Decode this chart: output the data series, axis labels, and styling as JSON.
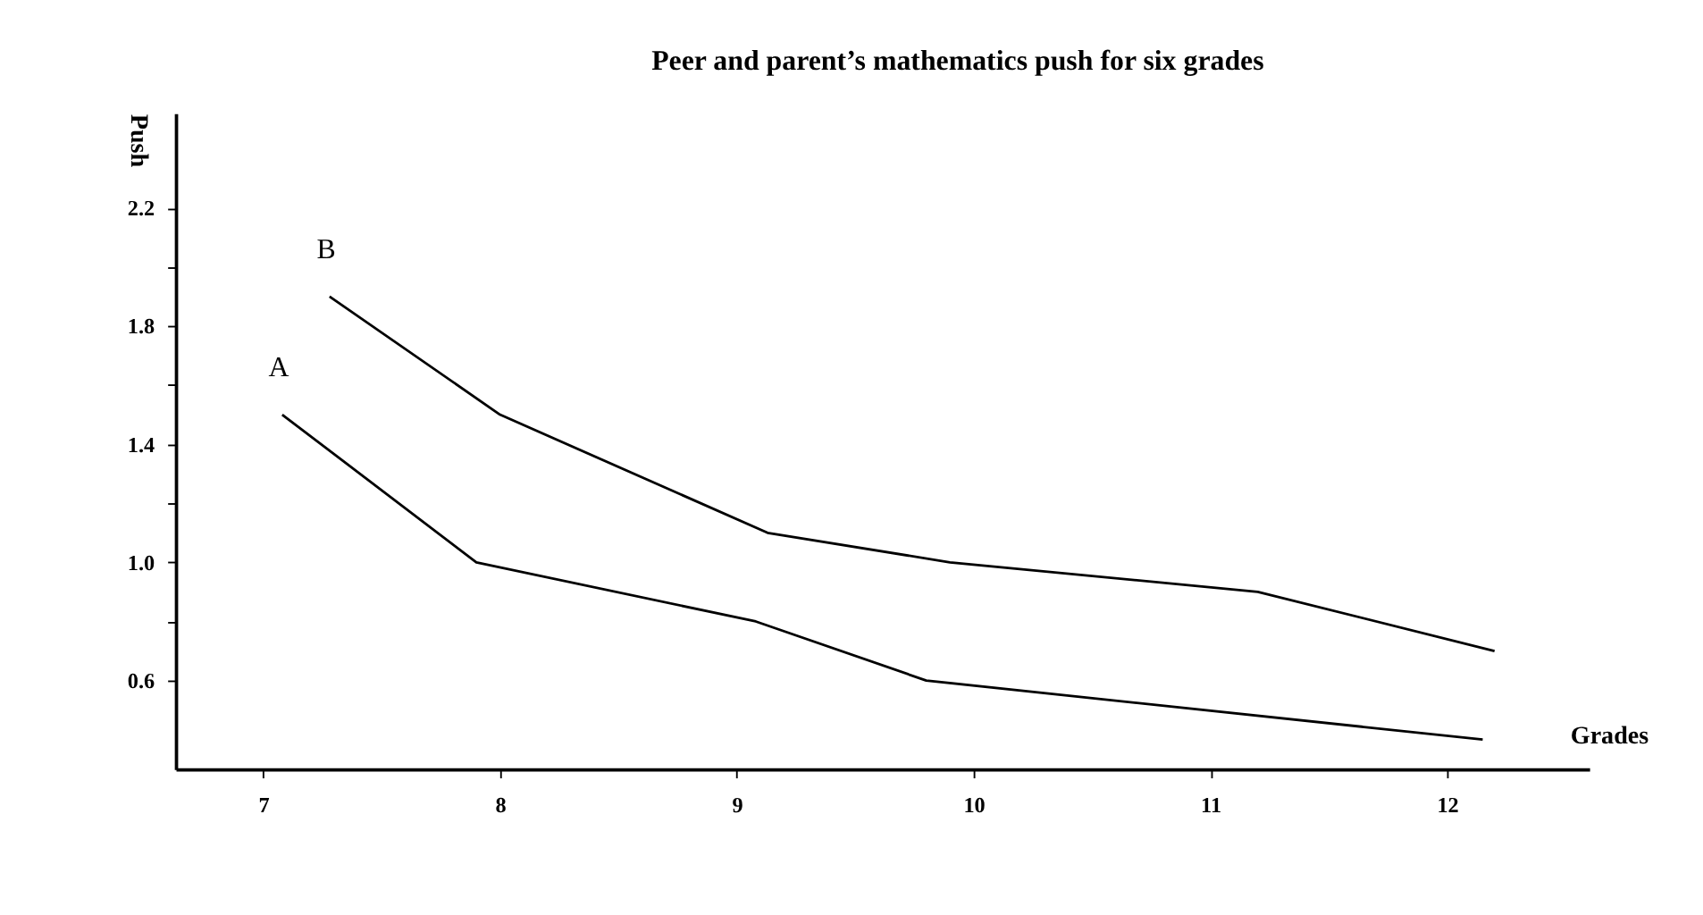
{
  "chart_data": {
    "type": "line",
    "title": "Peer and parent’s mathematics push for six grades",
    "xlabel": "Grades",
    "ylabel": "Push",
    "series": [
      {
        "name": "A",
        "color": "#000000",
        "x": [
          7.08,
          7.9,
          9.08,
          9.8,
          12.15
        ],
        "values": [
          1.5,
          1.0,
          0.8,
          0.6,
          0.4
        ]
      },
      {
        "name": "B",
        "color": "#000000",
        "x": [
          7.28,
          8.0,
          9.13,
          9.9,
          11.2,
          12.2
        ],
        "values": [
          1.9,
          1.5,
          1.1,
          1.0,
          0.9,
          0.7
        ]
      }
    ],
    "xlim": [
      6.63,
      12.6
    ],
    "ylim": [
      0.3,
      2.52
    ],
    "xticks": [
      7,
      8,
      9,
      10,
      11,
      12
    ],
    "yticks": [
      0.6,
      {
        "value": 0.8,
        "label": null
      },
      {
        "value": 1.0,
        "label": "1.0"
      },
      {
        "value": 1.2,
        "label": null
      },
      1.4,
      {
        "value": 1.6,
        "label": null
      },
      1.8,
      {
        "value": 2.0,
        "label": null
      },
      2.2
    ],
    "grid": false,
    "legend": false,
    "marker": "none",
    "line_style": "solid"
  }
}
